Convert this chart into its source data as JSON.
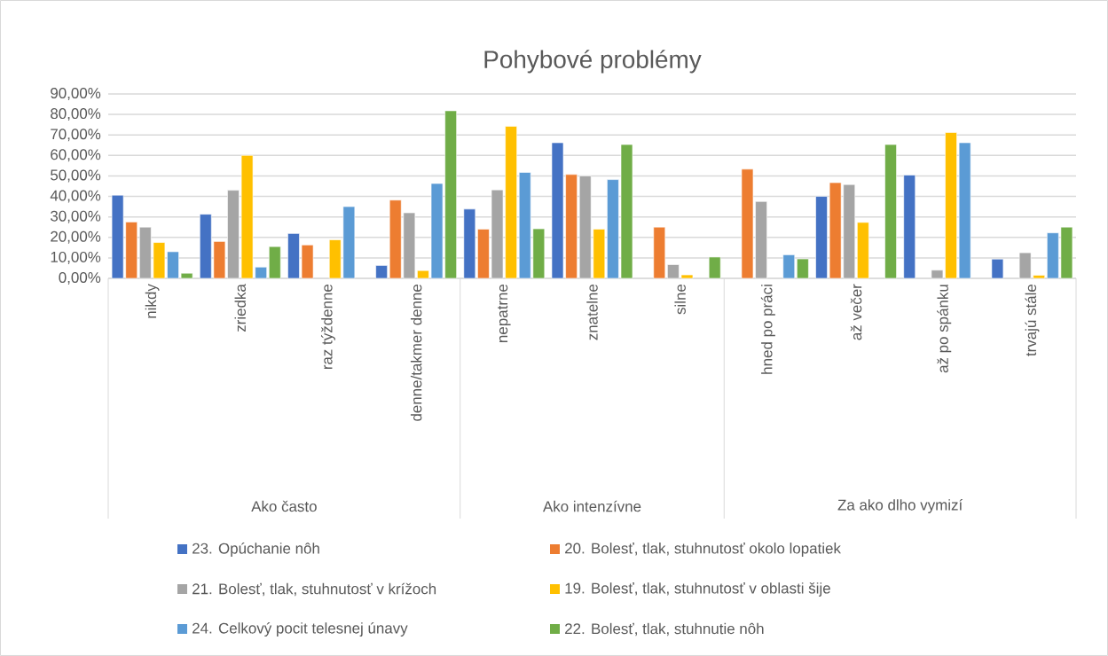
{
  "chart_data": {
    "type": "bar",
    "title": "Pohybové problémy",
    "categories": [
      "nikdy",
      "zriedka",
      "raz týždenne",
      "denne/takmer denne",
      "nepatrne",
      "znatelne",
      "silne",
      "hned po práci",
      "až večer",
      "až po spánku",
      "trvajú stále"
    ],
    "series": [
      {
        "name": "23. Opúchanie nôh",
        "color": "#4472c4",
        "values": [
          40.6,
          31.3,
          21.9,
          6.3,
          33.8,
          66.2,
          null,
          null,
          40.0,
          50.4,
          9.4
        ]
      },
      {
        "name": "20. Bolesť, tlak, stuhnutosť okolo lopatiek",
        "color": "#ed7d31",
        "values": [
          27.5,
          18.0,
          16.3,
          38.2,
          24.0,
          50.7,
          25.0,
          53.3,
          46.7,
          null,
          null
        ]
      },
      {
        "name": "21. Bolesť, tlak, stuhnutosť v krížoch",
        "color": "#a5a5a5",
        "values": [
          25.0,
          43.0,
          null,
          32.0,
          43.2,
          50.0,
          6.7,
          37.5,
          45.8,
          4.0,
          12.5
        ]
      },
      {
        "name": "19. Bolesť, tlak, stuhnutosť v oblasti šije",
        "color": "#ffc000",
        "values": [
          17.5,
          60.0,
          18.8,
          3.8,
          74.2,
          24.0,
          1.7,
          null,
          27.3,
          71.2,
          1.5
        ]
      },
      {
        "name": "24. Celkový pocit telesnej únavy",
        "color": "#5b9bd5",
        "values": [
          13.0,
          5.5,
          35.0,
          46.3,
          51.7,
          48.2,
          null,
          11.5,
          null,
          66.2,
          22.2
        ]
      },
      {
        "name": "22. Bolesť, tlak, stuhnutie nôh",
        "color": "#70ad47",
        "values": [
          2.5,
          15.5,
          null,
          81.8,
          24.2,
          65.3,
          10.4,
          9.5,
          65.3,
          null,
          25.0
        ]
      }
    ],
    "annotations": [
      "Ako často",
      "Ako intenzívne",
      "Za ako  dlho vymizí"
    ],
    "ylim": [
      0,
      90
    ],
    "yticks": [
      {
        "value": 0,
        "label": "0,00%"
      },
      {
        "value": 10,
        "label": "10,00%"
      },
      {
        "value": 20,
        "label": "20,00%"
      },
      {
        "value": 30,
        "label": "30,00%"
      },
      {
        "value": 40,
        "label": "40,00%"
      },
      {
        "value": 50,
        "label": "50,00%"
      },
      {
        "value": 60,
        "label": "60,00%"
      },
      {
        "value": 70,
        "label": "70,00%"
      },
      {
        "value": 80,
        "label": "80,00%"
      },
      {
        "value": 90,
        "label": "90,00%"
      }
    ],
    "grid": "y",
    "legend": "bottom"
  }
}
